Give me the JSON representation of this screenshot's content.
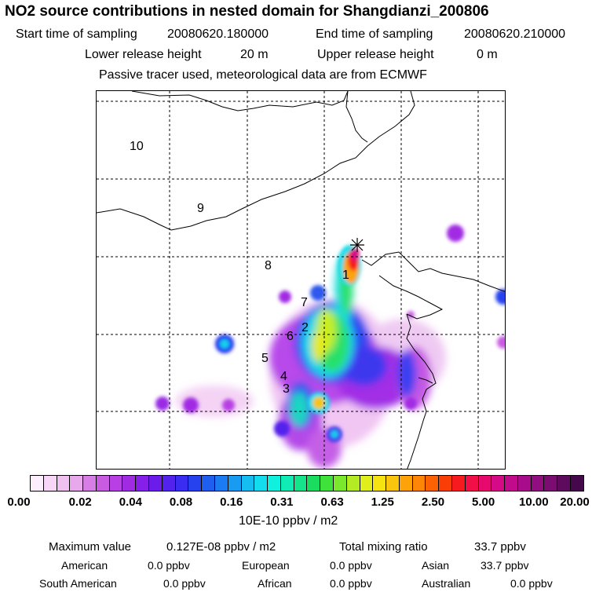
{
  "header": {
    "title": "NO2 source contributions in nested domain for Shangdianzi_200806",
    "start_label": "Start time of sampling",
    "start_value": "20080620.180000",
    "end_label": "End time of sampling",
    "end_value": "20080620.210000",
    "lower_label": "Lower release height",
    "lower_value": "20 m",
    "upper_label": "Upper release height",
    "upper_value": "0 m",
    "note": "Passive tracer used, meteorological data are from ECMWF"
  },
  "map": {
    "region_labels": [
      "1",
      "2",
      "3",
      "4",
      "5",
      "6",
      "7",
      "8",
      "9",
      "10"
    ],
    "receptor_marker": "station-star-icon"
  },
  "colorbar": {
    "ticks": [
      "0.00",
      "0.02",
      "0.04",
      "0.08",
      "0.16",
      "0.31",
      "0.63",
      "1.25",
      "2.50",
      "5.00",
      "10.00",
      "20.00"
    ],
    "unit": "10E-10 ppbv / m2",
    "colors": [
      "#fdeefd",
      "#f7d6f7",
      "#f0c0f0",
      "#e8a8ec",
      "#d77ee6",
      "#c95be2",
      "#b73fe3",
      "#a12be3",
      "#8620e8",
      "#6b1ce9",
      "#5322ec",
      "#3a2cf0",
      "#2542ee",
      "#1f5ff0",
      "#1b7cf2",
      "#189cf2",
      "#15bdf1",
      "#12dcee",
      "#0ff0df",
      "#11ebb5",
      "#15e48a",
      "#1adc5e",
      "#3fe23a",
      "#7ae82d",
      "#b3ec23",
      "#e0ef1b",
      "#f7e212",
      "#fbc40d",
      "#fda309",
      "#fe8506",
      "#fc6204",
      "#fa3d06",
      "#f71a1e",
      "#f20f48",
      "#e70a6e",
      "#d50a86",
      "#c20a8d",
      "#a90c8a",
      "#920d80",
      "#7a0c72",
      "#5f0b5d",
      "#45084a"
    ]
  },
  "footer": {
    "max_label": "Maximum value",
    "max_value": "0.127E-08 ppbv / m2",
    "total_label": "Total mixing ratio",
    "total_value": "33.7 ppbv",
    "american_label": "American",
    "american_value": "0.0 ppbv",
    "european_label": "European",
    "european_value": "0.0 ppbv",
    "asian_label": "Asian",
    "asian_value": "33.7 ppbv",
    "south_american_label": "South American",
    "south_american_value": "0.0 ppbv",
    "african_label": "African",
    "african_value": "0.0 ppbv",
    "australian_label": "Australian",
    "australian_value": "0.0 ppbv"
  }
}
